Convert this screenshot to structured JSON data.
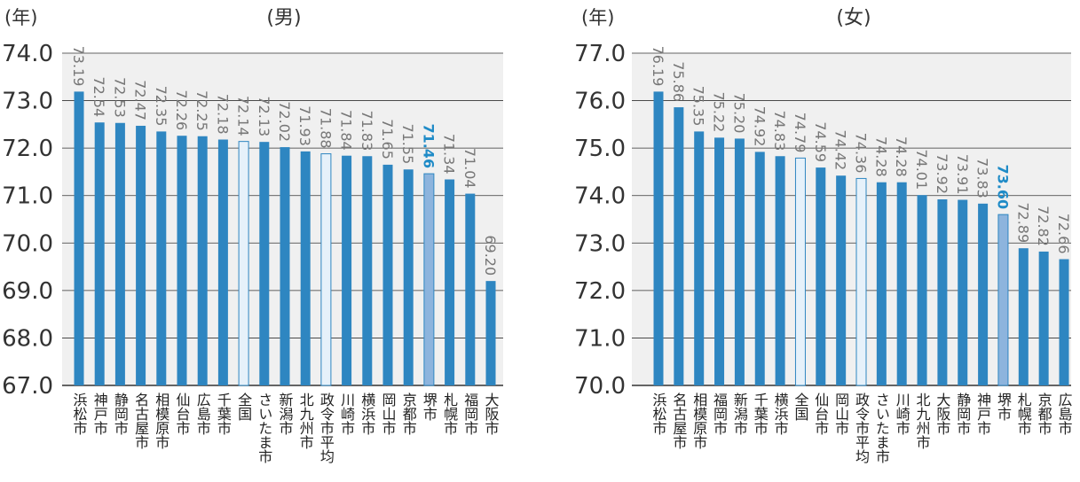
{
  "colors": {
    "bar": "#2e86c1",
    "highlight_bar": "#8db4dd",
    "reference_bar": "#e6f1fa",
    "plot_background": "#f0f0f0",
    "gridline": "#333333",
    "highlight_text": "#1f8bc7"
  },
  "chart_data": [
    {
      "type": "bar",
      "title": "(男)",
      "ylabel": "(年)",
      "ylim": [
        67,
        74
      ],
      "yticks": [
        "67.0",
        "68.0",
        "69.0",
        "70.0",
        "71.0",
        "72.0",
        "73.0",
        "74.0"
      ],
      "categories": [
        "浜松市",
        "神戸市",
        "静岡市",
        "名古屋市",
        "相模原市",
        "仙台市",
        "広島市",
        "千葉市",
        "全国",
        "さいたま市",
        "新潟市",
        "北九州市",
        "政令市平均",
        "川崎市",
        "横浜市",
        "岡山市",
        "京都市",
        "堺市",
        "札幌市",
        "福岡市",
        "大阪市"
      ],
      "values": [
        73.19,
        72.54,
        72.53,
        72.47,
        72.35,
        72.26,
        72.25,
        72.18,
        72.14,
        72.13,
        72.02,
        71.93,
        71.88,
        71.84,
        71.83,
        71.65,
        71.55,
        71.46,
        71.34,
        71.04,
        69.2
      ],
      "value_labels": [
        "73.19",
        "72.54",
        "72.53",
        "72.47",
        "72.35",
        "72.26",
        "72.25",
        "72.18",
        "72.14",
        "72.13",
        "72.02",
        "71.93",
        "71.88",
        "71.84",
        "71.83",
        "71.65",
        "71.55",
        "71.46",
        "71.34",
        "71.04",
        "69.20"
      ],
      "reference_categories": [
        "全国",
        "政令市平均"
      ],
      "highlight_category": "堺市",
      "grid": true
    },
    {
      "type": "bar",
      "title": "(女)",
      "ylabel": "(年)",
      "ylim": [
        70,
        77
      ],
      "yticks": [
        "70.0",
        "71.0",
        "72.0",
        "73.0",
        "74.0",
        "75.0",
        "76.0",
        "77.0"
      ],
      "categories": [
        "浜松市",
        "名古屋市",
        "相模原市",
        "福岡市",
        "新潟市",
        "千葉市",
        "横浜市",
        "全国",
        "仙台市",
        "岡山市",
        "政令市平均",
        "さいたま市",
        "川崎市",
        "北九州市",
        "大阪市",
        "静岡市",
        "神戸市",
        "堺市",
        "札幌市",
        "京都市",
        "広島市"
      ],
      "values": [
        76.19,
        75.86,
        75.35,
        75.22,
        75.2,
        74.92,
        74.83,
        74.79,
        74.59,
        74.42,
        74.36,
        74.28,
        74.28,
        74.01,
        73.92,
        73.91,
        73.83,
        73.6,
        72.89,
        72.82,
        72.66
      ],
      "value_labels": [
        "76.19",
        "75.86",
        "75.35",
        "75.22",
        "75.20",
        "74.92",
        "74.83",
        "74.79",
        "74.59",
        "74.42",
        "74.36",
        "74.28",
        "74.28",
        "74.01",
        "73.92",
        "73.91",
        "73.83",
        "73.60",
        "72.89",
        "72.82",
        "72.66"
      ],
      "reference_categories": [
        "全国",
        "政令市平均"
      ],
      "highlight_category": "堺市",
      "grid": true
    }
  ]
}
